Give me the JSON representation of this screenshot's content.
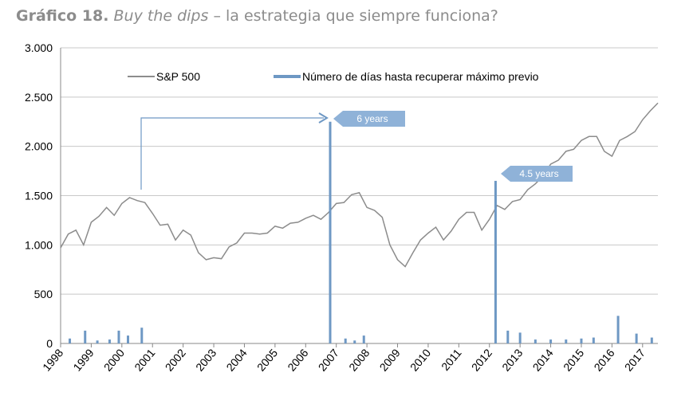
{
  "chart_data": {
    "type": "line",
    "title": {
      "label": "Gráfico 18.",
      "italic": "Buy the dips",
      "rest": "– la estrategia que siempre funciona?"
    },
    "xlim": [
      1998,
      2017.5
    ],
    "xticks": [
      1998,
      1999,
      2000,
      2001,
      2002,
      2003,
      2004,
      2005,
      2006,
      2007,
      2008,
      2009,
      2010,
      2011,
      2012,
      2013,
      2014,
      2015,
      2016,
      2017
    ],
    "ylim": [
      0,
      3000
    ],
    "yticks": [
      0,
      500,
      {
        "value": 1000,
        "label": "1.000"
      },
      {
        "value": 1500,
        "label": "1.500"
      },
      {
        "value": 2000,
        "label": "2.000"
      },
      {
        "value": 2500,
        "label": "2.500"
      },
      {
        "value": 3000,
        "label": "3.000"
      }
    ],
    "grid": true,
    "annotations": [
      "6 years",
      "4.5 years"
    ],
    "series": [
      {
        "name": "S&P 500",
        "color": "#8c8c8c",
        "kind": "line",
        "x": [
          1998,
          1998.25,
          1998.5,
          1998.75,
          1999,
          1999.25,
          1999.5,
          1999.75,
          2000,
          2000.25,
          2000.5,
          2000.75,
          2001,
          2001.25,
          2001.5,
          2001.75,
          2002,
          2002.25,
          2002.5,
          2002.75,
          2003,
          2003.25,
          2003.5,
          2003.75,
          2004,
          2004.25,
          2004.5,
          2004.75,
          2005,
          2005.25,
          2005.5,
          2005.75,
          2006,
          2006.25,
          2006.5,
          2006.75,
          2007,
          2007.25,
          2007.5,
          2007.75,
          2008,
          2008.25,
          2008.5,
          2008.75,
          2009,
          2009.25,
          2009.5,
          2009.75,
          2010,
          2010.25,
          2010.5,
          2010.75,
          2011,
          2011.25,
          2011.5,
          2011.75,
          2012,
          2012.25,
          2012.5,
          2012.75,
          2013,
          2013.25,
          2013.5,
          2013.75,
          2014,
          2014.25,
          2014.5,
          2014.75,
          2015,
          2015.25,
          2015.5,
          2015.75,
          2016,
          2016.25,
          2016.5,
          2016.75,
          2017,
          2017.25,
          2017.5
        ],
        "values": [
          970,
          1110,
          1150,
          1000,
          1230,
          1290,
          1380,
          1300,
          1420,
          1480,
          1450,
          1430,
          1320,
          1200,
          1210,
          1050,
          1150,
          1100,
          920,
          850,
          870,
          860,
          980,
          1020,
          1120,
          1120,
          1110,
          1120,
          1190,
          1170,
          1220,
          1230,
          1270,
          1300,
          1260,
          1330,
          1420,
          1430,
          1510,
          1530,
          1380,
          1350,
          1280,
          1000,
          850,
          780,
          920,
          1050,
          1120,
          1180,
          1050,
          1140,
          1260,
          1330,
          1330,
          1150,
          1260,
          1400,
          1360,
          1440,
          1460,
          1560,
          1620,
          1700,
          1820,
          1860,
          1950,
          1970,
          2060,
          2100,
          2100,
          1950,
          1900,
          2060,
          2100,
          2150,
          2270,
          2360,
          2440
        ]
      },
      {
        "name": "Número de días hasta recuperar máximo previo",
        "color": "#6e98c4",
        "kind": "bar",
        "x": [
          1998.3,
          1998.8,
          1999.2,
          1999.6,
          1999.9,
          2000.2,
          2000.65,
          2006.8,
          2007.3,
          2007.6,
          2007.9,
          2012.2,
          2012.6,
          2013.0,
          2013.5,
          2014.0,
          2014.5,
          2015.0,
          2015.4,
          2016.2,
          2016.8,
          2017.3
        ],
        "values": [
          50,
          130,
          30,
          40,
          130,
          80,
          160,
          2250,
          50,
          30,
          80,
          1650,
          130,
          110,
          40,
          40,
          40,
          50,
          60,
          280,
          100,
          60
        ]
      }
    ]
  }
}
